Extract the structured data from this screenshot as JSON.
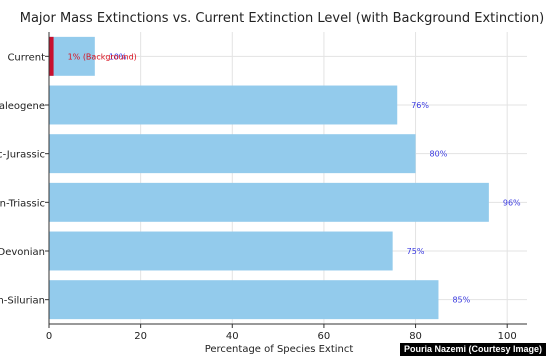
{
  "credit": "Pouria Nazemi (Courtesy Image)",
  "chart_data": {
    "type": "bar",
    "orientation": "horizontal",
    "title": "Major Mass Extinctions vs. Current Extinction Level (with Background Extinction)",
    "xlabel": "Percentage of Species Extinct",
    "ylabel": "",
    "xlim": [
      0,
      100
    ],
    "xticks": [
      0,
      20,
      40,
      60,
      80,
      100
    ],
    "grid": true,
    "categories": [
      "Current",
      "Paleogene",
      "c-Jurassic",
      "n-Triassic",
      "Devonian",
      "n-Silurian"
    ],
    "values": [
      10,
      76,
      80,
      96,
      75,
      85
    ],
    "data_labels": [
      "10%",
      "76%",
      "80%",
      "96%",
      "75%",
      "85%"
    ],
    "background": {
      "category": "Current",
      "value": 1,
      "label": "1% (Background)"
    },
    "colors": {
      "bar": "#93cbec",
      "background_bar": "#c8102e",
      "data_label": "#3a3ae0",
      "background_label": "#d8101f",
      "grid": "#e3e3e3",
      "axis": "#333333",
      "text": "#222222"
    }
  }
}
